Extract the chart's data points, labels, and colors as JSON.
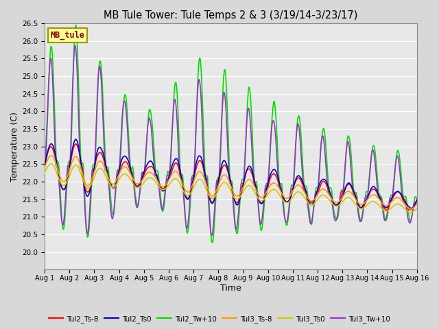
{
  "title": "MB Tule Tower: Tule Temps 2 & 3 (3/19/14-3/23/17)",
  "xlabel": "Time",
  "ylabel": "Temperature (C)",
  "xlim": [
    0,
    15
  ],
  "ylim": [
    19.5,
    26.5
  ],
  "yticks": [
    20.0,
    20.5,
    21.0,
    21.5,
    22.0,
    22.5,
    23.0,
    23.5,
    24.0,
    24.5,
    25.0,
    25.5,
    26.0,
    26.5
  ],
  "xtick_labels": [
    "Aug 1",
    "Aug 2",
    "Aug 3",
    "Aug 4",
    "Aug 5",
    "Aug 6",
    "Aug 7",
    "Aug 8",
    "Aug 9",
    "Aug 10",
    "Aug 11",
    "Aug 12",
    "Aug 13",
    "Aug 14",
    "Aug 15",
    "Aug 16"
  ],
  "series": {
    "Tul2_Ts-8": {
      "color": "#ff0000",
      "lw": 1.2
    },
    "Tul2_Ts0": {
      "color": "#0000cc",
      "lw": 1.2
    },
    "Tul2_Tw+10": {
      "color": "#00dd00",
      "lw": 1.2
    },
    "Tul3_Ts-8": {
      "color": "#ff9900",
      "lw": 1.2
    },
    "Tul3_Ts0": {
      "color": "#cccc00",
      "lw": 1.2
    },
    "Tul3_Tw+10": {
      "color": "#9933cc",
      "lw": 1.2
    }
  },
  "bg_color": "#d8d8d8",
  "plot_bg": "#e8e8e8",
  "watermark_text": "MB_tule",
  "watermark_bg": "#ffff99",
  "watermark_border": "#999900"
}
